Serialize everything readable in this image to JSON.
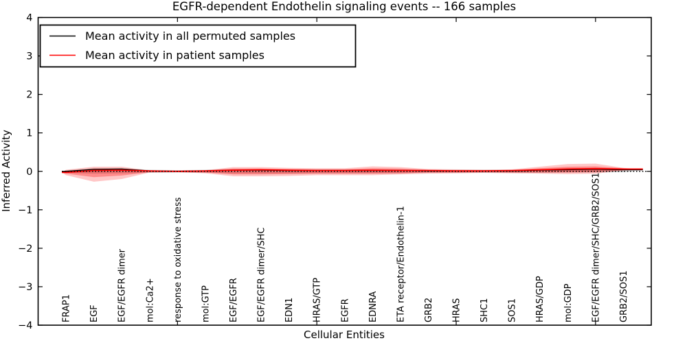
{
  "chart_data": {
    "type": "line",
    "title": "EGFR-dependent Endothelin signaling events -- 166 samples",
    "xlabel": "Cellular Entities",
    "ylabel": "Inferred Activity",
    "ylim": [
      -4,
      4
    ],
    "yticks": [
      -4,
      -3,
      -2,
      -1,
      0,
      1,
      2,
      3,
      4
    ],
    "frame_tick_positions": [
      5,
      10,
      15,
      20
    ],
    "grid": false,
    "legend_position": "upper left",
    "zero_line": 0,
    "categories": [
      "FRAP1",
      "EGF",
      "EGF/EGFR dimer",
      "mol:Ca2+",
      "response to oxidative stress",
      "mol:GTP",
      "EGF/EGFR",
      "EGF/EGFR dimer/SHC",
      "EDN1",
      "HRAS/GTP",
      "EGFR",
      "EDNRA",
      "ETA receptor/Endothelin-1",
      "GRB2",
      "HRAS",
      "SHC1",
      "SOS1",
      "HRAS/GDP",
      "mol:GDP",
      "EGF/EGFR dimer/SHC/GRB2/SOS1",
      "GRB2/SOS1"
    ],
    "series": [
      {
        "name": "Mean activity in all permuted samples",
        "color": "#000000",
        "values": [
          0.0,
          0.05,
          0.06,
          0.01,
          0.0,
          0.01,
          0.03,
          0.03,
          0.02,
          0.02,
          0.02,
          0.02,
          0.02,
          0.01,
          0.01,
          0.01,
          0.01,
          0.03,
          0.04,
          0.05,
          0.04
        ]
      },
      {
        "name": "Mean activity in patient samples",
        "color": "#ff0000",
        "values": [
          -0.03,
          0.02,
          0.03,
          0.01,
          0.0,
          0.01,
          0.03,
          0.04,
          0.03,
          0.02,
          0.02,
          0.03,
          0.02,
          0.02,
          0.01,
          0.01,
          0.02,
          0.04,
          0.06,
          0.07,
          0.06
        ]
      }
    ],
    "bands": [
      {
        "name": "permuted-samples-std-band",
        "color": "#808080",
        "opacity": 0.38,
        "upper": [
          0.03,
          0.08,
          0.08,
          0.04,
          0.03,
          0.04,
          0.06,
          0.06,
          0.05,
          0.05,
          0.05,
          0.05,
          0.05,
          0.04,
          0.04,
          0.04,
          0.04,
          0.06,
          0.08,
          0.09,
          0.07
        ],
        "lower": [
          -0.04,
          -0.06,
          -0.05,
          -0.04,
          -0.03,
          -0.04,
          -0.05,
          -0.05,
          -0.05,
          -0.05,
          -0.05,
          -0.05,
          -0.05,
          -0.04,
          -0.04,
          -0.04,
          -0.04,
          -0.04,
          -0.03,
          -0.03,
          -0.02
        ]
      },
      {
        "name": "patient-samples-std-outer-band",
        "color": "#ff0000",
        "opacity": 0.22,
        "upper": [
          0.04,
          0.12,
          0.12,
          0.02,
          0.02,
          0.03,
          0.11,
          0.11,
          0.09,
          0.08,
          0.08,
          0.13,
          0.11,
          0.06,
          0.05,
          0.04,
          0.05,
          0.12,
          0.19,
          0.2,
          0.09
        ],
        "lower": [
          -0.1,
          -0.27,
          -0.2,
          -0.03,
          -0.02,
          -0.05,
          -0.13,
          -0.13,
          -0.12,
          -0.1,
          -0.1,
          -0.1,
          -0.08,
          -0.06,
          -0.05,
          -0.04,
          -0.05,
          -0.06,
          -0.07,
          -0.06,
          0.02
        ]
      },
      {
        "name": "patient-samples-std-inner-band",
        "color": "#ff0000",
        "opacity": 0.3,
        "upper": [
          0.01,
          0.07,
          0.07,
          0.02,
          0.01,
          0.02,
          0.07,
          0.07,
          0.06,
          0.05,
          0.05,
          0.08,
          0.07,
          0.04,
          0.03,
          0.03,
          0.03,
          0.08,
          0.12,
          0.13,
          0.08
        ],
        "lower": [
          -0.06,
          -0.15,
          -0.11,
          -0.02,
          -0.02,
          -0.03,
          -0.08,
          -0.08,
          -0.07,
          -0.06,
          -0.06,
          -0.06,
          -0.05,
          -0.03,
          -0.03,
          -0.02,
          -0.03,
          -0.03,
          -0.03,
          -0.02,
          0.03
        ]
      }
    ]
  }
}
